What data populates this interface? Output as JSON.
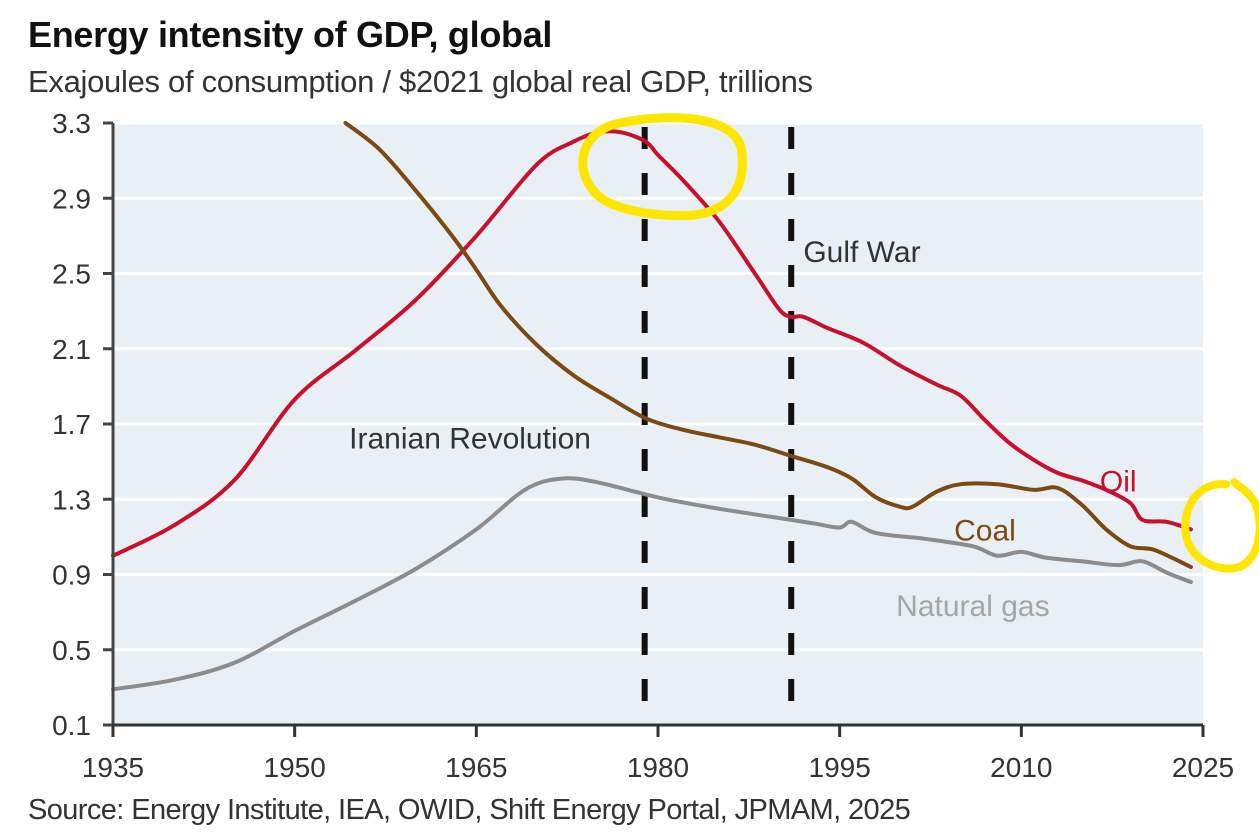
{
  "header": {
    "title": "Energy intensity of GDP, global",
    "subtitle": "Exajoules of consumption / $2021 global real GDP, trillions"
  },
  "footer": {
    "source": "Source: Energy Institute, IEA, OWID, Shift Energy Portal, JPMAM, 2025"
  },
  "chart_data": {
    "type": "line",
    "title": "Energy intensity of GDP, global",
    "subtitle": "Exajoules of consumption / $2021 global real GDP, trillions",
    "xlabel": "",
    "ylabel": "",
    "xlim": [
      1935,
      2025
    ],
    "ylim": [
      0.1,
      3.3
    ],
    "x_ticks": [
      1935,
      1950,
      1965,
      1980,
      1995,
      2010,
      2025
    ],
    "x_tick_labels": [
      "1935",
      "1950",
      "1965",
      "1980",
      "1995",
      "2010",
      "2025"
    ],
    "y_ticks": [
      3.3,
      2.9,
      2.5,
      2.1,
      1.7,
      1.3,
      0.9,
      0.5,
      0.1
    ],
    "y_tick_labels": [
      "3.3",
      "2.9",
      "2.5",
      "2.1",
      "1.7",
      "1.3",
      "0.9",
      "0.5",
      "0.1"
    ],
    "grid": true,
    "background_color": "#e8eff5",
    "series": [
      {
        "name": "Oil",
        "color": "#c8102e",
        "x": [
          1935,
          1940,
          1945,
          1950,
          1955,
          1960,
          1965,
          1970,
          1973,
          1975,
          1977,
          1979,
          1980,
          1982,
          1985,
          1988,
          1990,
          1991,
          1992,
          1994,
          1997,
          2000,
          2003,
          2005,
          2007,
          2009,
          2011,
          2013,
          2015,
          2017,
          2019,
          2020,
          2022,
          2024
        ],
        "values": [
          1.0,
          1.16,
          1.4,
          1.83,
          2.09,
          2.36,
          2.7,
          3.08,
          3.2,
          3.25,
          3.25,
          3.2,
          3.13,
          3.0,
          2.78,
          2.5,
          2.31,
          2.27,
          2.27,
          2.21,
          2.13,
          2.01,
          1.91,
          1.85,
          1.72,
          1.6,
          1.51,
          1.44,
          1.4,
          1.35,
          1.28,
          1.19,
          1.18,
          1.14
        ]
      },
      {
        "name": "Coal",
        "color": "#7a4a12",
        "x": [
          1954.2,
          1957,
          1960,
          1963,
          1965,
          1967,
          1970,
          1973,
          1976,
          1979,
          1982,
          1985,
          1988,
          1991,
          1994,
          1996,
          1998,
          2000,
          2001,
          2003,
          2005,
          2008,
          2011,
          2013,
          2015,
          2017,
          2019,
          2021,
          2024
        ],
        "values": [
          3.3,
          3.16,
          2.94,
          2.7,
          2.52,
          2.33,
          2.12,
          1.96,
          1.84,
          1.73,
          1.67,
          1.63,
          1.59,
          1.53,
          1.47,
          1.41,
          1.31,
          1.26,
          1.26,
          1.34,
          1.38,
          1.38,
          1.35,
          1.36,
          1.27,
          1.14,
          1.05,
          1.03,
          0.94
        ]
      },
      {
        "name": "Natural gas",
        "color": "#8c8c8c",
        "x": [
          1935,
          1940,
          1945,
          1950,
          1955,
          1960,
          1965,
          1969,
          1972,
          1975,
          1980,
          1985,
          1991,
          1993,
          1995,
          1996,
          1998,
          2002,
          2006,
          2008,
          2010,
          2012,
          2015,
          2018,
          2020,
          2022,
          2024
        ],
        "values": [
          0.29,
          0.34,
          0.43,
          0.6,
          0.76,
          0.93,
          1.14,
          1.35,
          1.41,
          1.39,
          1.31,
          1.25,
          1.19,
          1.17,
          1.15,
          1.18,
          1.12,
          1.09,
          1.05,
          1.0,
          1.02,
          0.99,
          0.97,
          0.95,
          0.97,
          0.91,
          0.86
        ]
      }
    ],
    "series_labels": [
      {
        "text": "Oil",
        "x": 2018,
        "y": 1.34,
        "color": "#c8102e"
      },
      {
        "text": "Coal",
        "x": 2007,
        "y": 1.08,
        "color": "#7a4a12"
      },
      {
        "text": "Natural gas",
        "x": 2006,
        "y": 0.68,
        "color": "#a6a6a6"
      }
    ],
    "annotations": [
      {
        "text": "Iranian Revolution",
        "type": "vline",
        "x": 1978.9,
        "label_x": 1954.5,
        "label_y": 1.57
      },
      {
        "text": "Gulf War",
        "type": "vline",
        "x": 1991,
        "label_x": 1992,
        "label_y": 2.56
      }
    ],
    "highlights": [
      {
        "shape": "hand-drawn-circle",
        "color": "#ffe600",
        "around_x": 1977,
        "around_y": 3.1
      },
      {
        "shape": "hand-drawn-circle",
        "color": "#ffe600",
        "around_x": 2026.5,
        "around_y": 1.13
      }
    ]
  }
}
